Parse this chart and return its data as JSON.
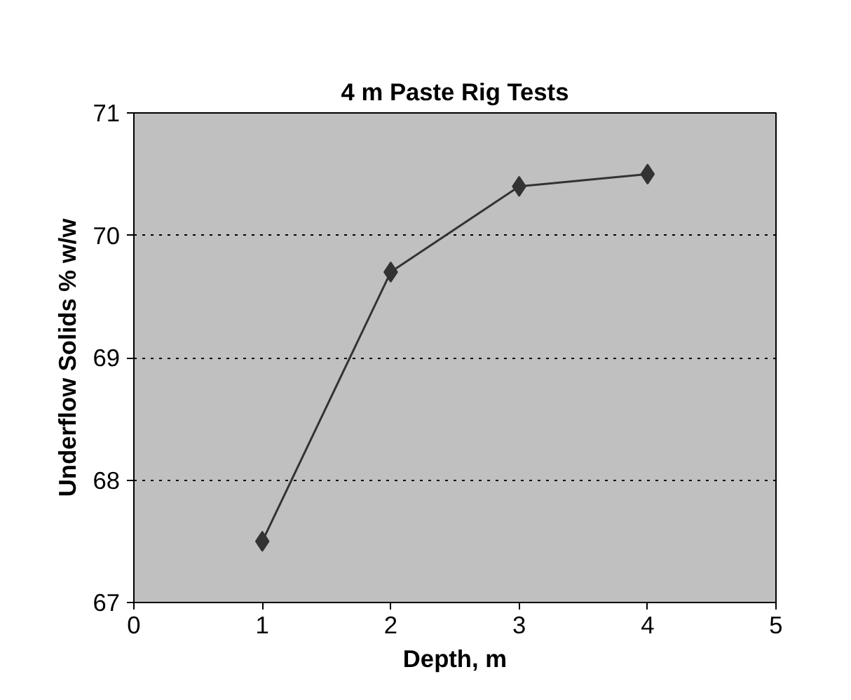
{
  "chart_data": {
    "type": "line",
    "title": "4 m Paste Rig Tests",
    "xlabel": "Depth, m",
    "ylabel": "Underflow Solids % w/w",
    "x": [
      1,
      2,
      3,
      4
    ],
    "series": [
      {
        "color": "#333333",
        "values": [
          67.5,
          69.7,
          70.4,
          70.5
        ]
      }
    ],
    "xlim": [
      0,
      5
    ],
    "xticks": [
      0,
      1,
      2,
      3,
      4,
      5
    ],
    "ylim": [
      67,
      71
    ],
    "yticks": [
      67,
      68,
      69,
      70,
      71
    ],
    "grid": "y",
    "marker": "diamond",
    "line_style": "solid"
  }
}
